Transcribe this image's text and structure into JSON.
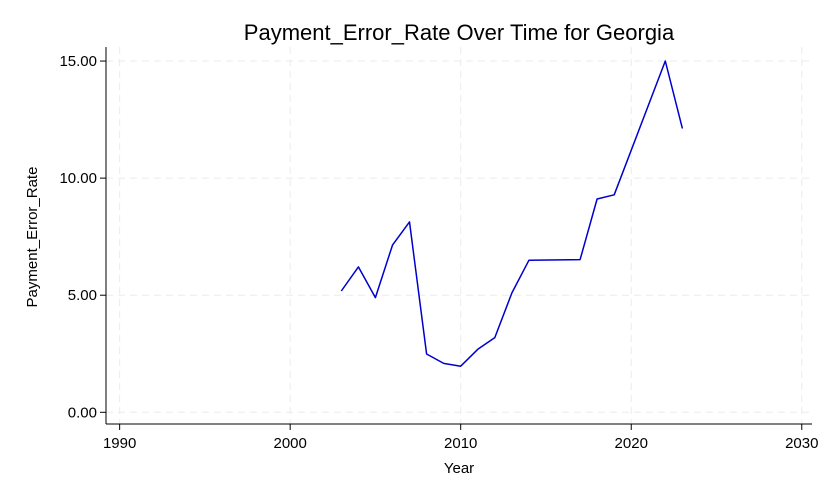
{
  "chart_data": {
    "type": "line",
    "title": "Payment_Error_Rate Over Time for Georgia",
    "xlabel": "Year",
    "ylabel": "Payment_Error_Rate",
    "xlim": [
      1989.2,
      2030.6
    ],
    "ylim": [
      -0.5,
      15.6
    ],
    "xticks": [
      1990,
      2000,
      2010,
      2020,
      2030
    ],
    "xtick_labels": [
      "1990",
      "2000",
      "2010",
      "2020",
      "2030"
    ],
    "yticks": [
      0,
      5,
      10,
      15
    ],
    "ytick_labels": [
      "0.00",
      "5.00",
      "10.00",
      "15.00"
    ],
    "grid": true,
    "series": [
      {
        "color": "#0000cc",
        "x": [
          2003,
          2004,
          2005,
          2006,
          2007,
          2008,
          2009,
          2010,
          2011,
          2012,
          2013,
          2014,
          2017,
          2018,
          2019,
          2022,
          2023
        ],
        "y": [
          5.18,
          6.21,
          4.9,
          7.14,
          8.13,
          2.49,
          2.09,
          1.97,
          2.69,
          3.19,
          5.1,
          6.49,
          6.52,
          9.11,
          9.29,
          15.0,
          12.12
        ]
      }
    ]
  }
}
